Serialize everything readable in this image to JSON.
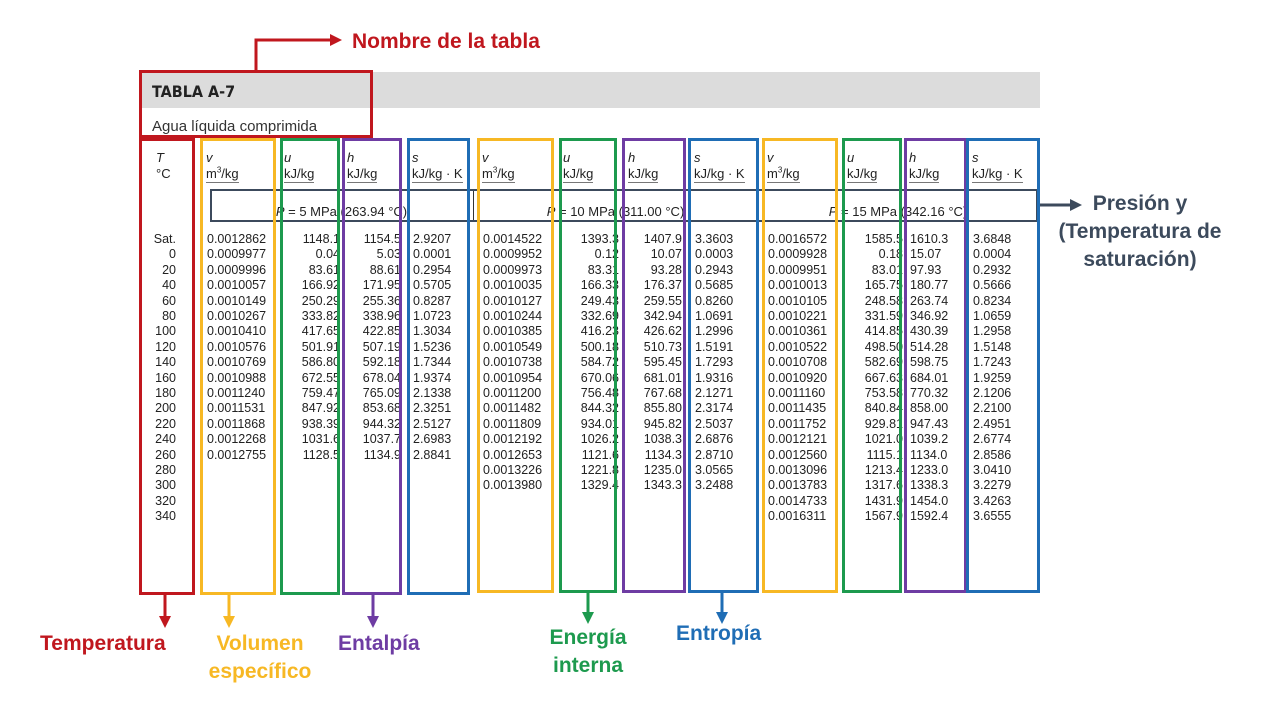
{
  "annotations": {
    "table_name": "Nombre de la tabla",
    "pressure": [
      "Presión y",
      "(Temperatura de",
      "saturación)"
    ],
    "temperature": "Temperatura",
    "specific_volume": [
      "Volumen",
      "específico"
    ],
    "enthalpy": "Entalpía",
    "internal_energy": [
      "Energía",
      "interna"
    ],
    "entropy": "Entropía"
  },
  "colors": {
    "temperature": "#c0171e",
    "volume": "#f7b824",
    "internal_energy": "#1d9a4e",
    "enthalpy": "#6e3ca3",
    "entropy": "#1f6db5",
    "pressure": "#3c4a5c"
  },
  "table": {
    "title": "TABLA A-7",
    "subtitle": "Agua líquida comprimida",
    "t_header": {
      "sym": "T",
      "unit": "°C"
    },
    "col_headers": [
      {
        "sym": "v",
        "unit": "m3/kg"
      },
      {
        "sym": "u",
        "unit": "kJ/kg"
      },
      {
        "sym": "h",
        "unit": "kJ/kg"
      },
      {
        "sym": "s",
        "unit": "kJ/kg · K"
      }
    ],
    "pressures": [
      {
        "p": "P",
        "rest": " = 5 MPa (263.94 °C)"
      },
      {
        "p": "P",
        "rest": " = 10 MPa (311.00 °C)"
      },
      {
        "p": "P",
        "rest": " = 15 MPa (342.16 °C)"
      }
    ],
    "temperatures": [
      "Sat.",
      "0",
      "20",
      "40",
      "60",
      "80",
      "100",
      "120",
      "140",
      "160",
      "180",
      "200",
      "220",
      "240",
      "260",
      "280",
      "300",
      "320",
      "340"
    ],
    "blocks": [
      {
        "v": [
          "0.0012862",
          "0.0009977",
          "0.0009996",
          "0.0010057",
          "0.0010149",
          "0.0010267",
          "0.0010410",
          "0.0010576",
          "0.0010769",
          "0.0010988",
          "0.0011240",
          "0.0011531",
          "0.0011868",
          "0.0012268",
          "0.0012755",
          "",
          "",
          "",
          ""
        ],
        "u": [
          "1148.1",
          "0.04",
          "83.61",
          "166.92",
          "250.29",
          "333.82",
          "417.65",
          "501.91",
          "586.80",
          "672.55",
          "759.47",
          "847.92",
          "938.39",
          "1031.6",
          "1128.5",
          "",
          "",
          "",
          ""
        ],
        "h": [
          "1154.5",
          "5.03",
          "88.61",
          "171.95",
          "255.36",
          "338.96",
          "422.85",
          "507.19",
          "592.18",
          "678.04",
          "765.09",
          "853.68",
          "944.32",
          "1037.7",
          "1134.9",
          "",
          "",
          "",
          ""
        ],
        "s": [
          "2.9207",
          "0.0001",
          "0.2954",
          "0.5705",
          "0.8287",
          "1.0723",
          "1.3034",
          "1.5236",
          "1.7344",
          "1.9374",
          "2.1338",
          "2.3251",
          "2.5127",
          "2.6983",
          "2.8841",
          "",
          "",
          "",
          ""
        ]
      },
      {
        "v": [
          "0.0014522",
          "0.0009952",
          "0.0009973",
          "0.0010035",
          "0.0010127",
          "0.0010244",
          "0.0010385",
          "0.0010549",
          "0.0010738",
          "0.0010954",
          "0.0011200",
          "0.0011482",
          "0.0011809",
          "0.0012192",
          "0.0012653",
          "0.0013226",
          "0.0013980",
          "",
          ""
        ],
        "u": [
          "1393.3",
          "0.12",
          "83.31",
          "166.33",
          "249.43",
          "332.69",
          "416.23",
          "500.18",
          "584.72",
          "670.06",
          "756.48",
          "844.32",
          "934.01",
          "1026.2",
          "1121.6",
          "1221.8",
          "1329.4",
          "",
          ""
        ],
        "h": [
          "1407.9",
          "10.07",
          "93.28",
          "176.37",
          "259.55",
          "342.94",
          "426.62",
          "510.73",
          "595.45",
          "681.01",
          "767.68",
          "855.80",
          "945.82",
          "1038.3",
          "1134.3",
          "1235.0",
          "1343.3",
          "",
          ""
        ],
        "s": [
          "3.3603",
          "0.0003",
          "0.2943",
          "0.5685",
          "0.8260",
          "1.0691",
          "1.2996",
          "1.5191",
          "1.7293",
          "1.9316",
          "2.1271",
          "2.3174",
          "2.5037",
          "2.6876",
          "2.8710",
          "3.0565",
          "3.2488",
          "",
          ""
        ]
      },
      {
        "v": [
          "0.0016572",
          "0.0009928",
          "0.0009951",
          "0.0010013",
          "0.0010105",
          "0.0010221",
          "0.0010361",
          "0.0010522",
          "0.0010708",
          "0.0010920",
          "0.0011160",
          "0.0011435",
          "0.0011752",
          "0.0012121",
          "0.0012560",
          "0.0013096",
          "0.0013783",
          "0.0014733",
          "0.0016311"
        ],
        "u": [
          "1585.5",
          "0.18",
          "83.01",
          "165.75",
          "248.58",
          "331.59",
          "414.85",
          "498.50",
          "582.69",
          "667.63",
          "753.58",
          "840.84",
          "929.81",
          "1021.0",
          "1115.1",
          "1213.4",
          "1317.6",
          "1431.9",
          "1567.9"
        ],
        "h": [
          "1610.3",
          "15.07",
          "97.93",
          "180.77",
          "263.74",
          "346.92",
          "430.39",
          "514.28",
          "598.75",
          "684.01",
          "770.32",
          "858.00",
          "947.43",
          "1039.2",
          "1134.0",
          "1233.0",
          "1338.3",
          "1454.0",
          "1592.4"
        ],
        "s": [
          "3.6848",
          "0.0004",
          "0.2932",
          "0.5666",
          "0.8234",
          "1.0659",
          "1.2958",
          "1.5148",
          "1.7243",
          "1.9259",
          "2.1206",
          "2.2100",
          "2.4951",
          "2.6774",
          "2.8586",
          "3.0410",
          "3.2279",
          "3.4263",
          "3.6555"
        ]
      }
    ]
  }
}
